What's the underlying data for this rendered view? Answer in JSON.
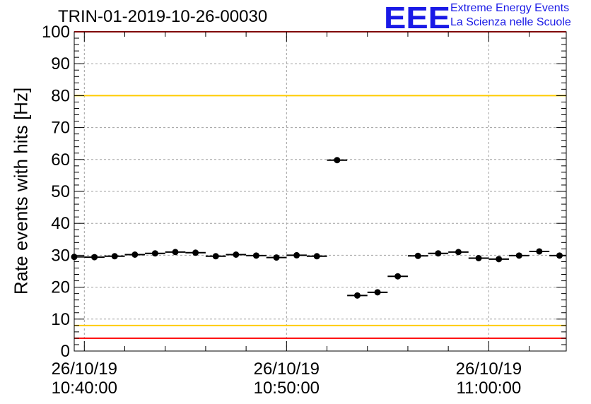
{
  "title": "TRIN-01-2019-10-26-00030",
  "logo": {
    "text": "EEE",
    "line1": "Extreme Energy Events",
    "line2": "La Scienza nelle Scuole",
    "color": "#1a1ae6"
  },
  "chart_data": {
    "type": "scatter",
    "title": "TRIN-01-2019-10-26-00030",
    "ylabel": "Rate events with hits [Hz]",
    "xlabel": "",
    "ylim": [
      0,
      100
    ],
    "yticks": [
      0,
      10,
      20,
      30,
      40,
      50,
      60,
      70,
      80,
      90,
      100
    ],
    "xlim": [
      "10:39:30",
      "11:03:50"
    ],
    "xticks": [
      {
        "time": "10:40:00",
        "date_label": "26/10/19",
        "time_label": "10:40:00"
      },
      {
        "time": "10:50:00",
        "date_label": "26/10/19",
        "time_label": "10:50:00"
      },
      {
        "time": "11:00:00",
        "date_label": "26/10/19",
        "time_label": "11:00:00"
      }
    ],
    "grid": true,
    "bin_width_s": 60,
    "points": [
      {
        "x": "10:39:30",
        "y": 29.5
      },
      {
        "x": "10:40:30",
        "y": 29.4
      },
      {
        "x": "10:41:30",
        "y": 29.7
      },
      {
        "x": "10:42:30",
        "y": 30.2
      },
      {
        "x": "10:43:30",
        "y": 30.6
      },
      {
        "x": "10:44:30",
        "y": 31.0
      },
      {
        "x": "10:45:30",
        "y": 30.8
      },
      {
        "x": "10:46:30",
        "y": 29.7
      },
      {
        "x": "10:47:30",
        "y": 30.2
      },
      {
        "x": "10:48:30",
        "y": 29.9
      },
      {
        "x": "10:49:30",
        "y": 29.3
      },
      {
        "x": "10:50:30",
        "y": 30.0
      },
      {
        "x": "10:51:30",
        "y": 29.7
      },
      {
        "x": "10:52:30",
        "y": 59.8
      },
      {
        "x": "10:53:30",
        "y": 17.4
      },
      {
        "x": "10:54:30",
        "y": 18.4
      },
      {
        "x": "10:55:30",
        "y": 23.4
      },
      {
        "x": "10:56:30",
        "y": 29.8
      },
      {
        "x": "10:57:30",
        "y": 30.6
      },
      {
        "x": "10:58:30",
        "y": 31.0
      },
      {
        "x": "10:59:30",
        "y": 29.1
      },
      {
        "x": "11:00:30",
        "y": 28.8
      },
      {
        "x": "11:01:30",
        "y": 29.9
      },
      {
        "x": "11:02:30",
        "y": 31.2
      },
      {
        "x": "11:03:30",
        "y": 29.9
      }
    ],
    "threshold_lines": [
      {
        "y": 100,
        "color": "#ff0000"
      },
      {
        "y": 80,
        "color": "#ffcc00"
      },
      {
        "y": 8,
        "color": "#ffcc00"
      },
      {
        "y": 4,
        "color": "#ff0000"
      }
    ]
  }
}
